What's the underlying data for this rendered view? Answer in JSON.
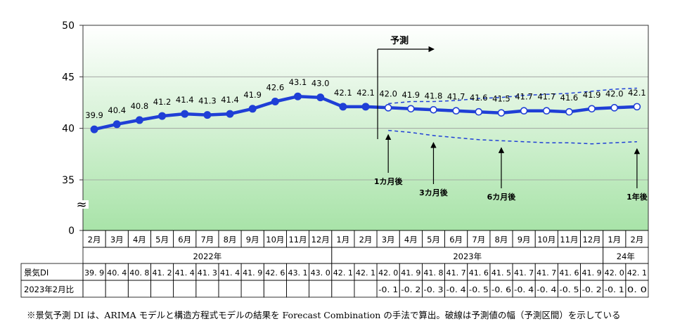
{
  "chart_data": {
    "type": "line",
    "y_ticks": [
      "50",
      "45",
      "40",
      "35",
      "0"
    ],
    "y_break_symbol": "≈",
    "months": [
      "2月",
      "3月",
      "4月",
      "5月",
      "6月",
      "7月",
      "8月",
      "9月",
      "10月",
      "11月",
      "12月",
      "1月",
      "2月",
      "3月",
      "4月",
      "5月",
      "6月",
      "7月",
      "8月",
      "9月",
      "10月",
      "11月",
      "12月",
      "1月",
      "2月"
    ],
    "year_groups": [
      {
        "label": "2022年",
        "start": 0,
        "end": 10
      },
      {
        "label": "2023年",
        "start": 11,
        "end": 22
      },
      {
        "label": "24年",
        "start": 23,
        "end": 24
      }
    ],
    "values": [
      39.9,
      40.4,
      40.8,
      41.2,
      41.4,
      41.3,
      41.4,
      41.9,
      42.6,
      43.1,
      43.0,
      42.1,
      42.1,
      42.0,
      41.9,
      41.8,
      41.7,
      41.6,
      41.5,
      41.7,
      41.7,
      41.6,
      41.9,
      42.0,
      42.1
    ],
    "value_labels": [
      "39.9",
      "40.4",
      "40.8",
      "41.2",
      "41.4",
      "41.3",
      "41.4",
      "41.9",
      "42.6",
      "43.1",
      "43.0",
      "42.1",
      "42.1",
      "42.0",
      "41.9",
      "41.8",
      "41.7",
      "41.6",
      "41.5",
      "41.7",
      "41.7",
      "41.6",
      "41.9",
      "42.0",
      "42.1"
    ],
    "forecast_start_index": 13,
    "upper_band": [
      42.4,
      42.6,
      42.6,
      42.7,
      42.9,
      43.0,
      43.2,
      43.3,
      43.4,
      43.6,
      43.8,
      43.9
    ],
    "lower_band": [
      39.8,
      39.6,
      39.3,
      39.1,
      38.9,
      38.8,
      38.7,
      38.6,
      38.6,
      38.5,
      38.6,
      38.7
    ],
    "forecast_label": "予測",
    "horizon_markers": [
      {
        "index": 13,
        "label": "1カ月後"
      },
      {
        "index": 15,
        "label": "3カ月後"
      },
      {
        "index": 18,
        "label": "6カ月後"
      },
      {
        "index": 24,
        "label": "1年後"
      }
    ],
    "table": {
      "row1_label": "景気DI",
      "row1_values": [
        "39. 9",
        "40. 4",
        "40. 8",
        "41. 2",
        "41. 4",
        "41. 3",
        "41. 4",
        "41. 9",
        "42. 6",
        "43. 1",
        "43. 0",
        "42. 1",
        "42. 1",
        "42. 0",
        "41. 9",
        "41. 8",
        "41. 7",
        "41. 6",
        "41. 5",
        "41. 7",
        "41. 7",
        "41. 6",
        "41. 9",
        "42. 0",
        "42. 1"
      ],
      "row2_label": "2023年2月比",
      "row2_values": [
        "",
        "",
        "",
        "",
        "",
        "",
        "",
        "",
        "",
        "",
        "",
        "",
        "",
        "-0. 1",
        "-0. 2",
        "-0. 3",
        "-0. 4",
        "-0. 5",
        "-0. 6",
        "-0. 4",
        "-0. 4",
        "-0. 5",
        "-0. 2",
        "-0. 1",
        "0. 0"
      ]
    },
    "colors": {
      "line": "#1f3fd6",
      "grid": "#9a9a9a",
      "band": "#1f3fd6",
      "fill_top": "#ffffff",
      "fill_bottom": "#a8e3a8"
    }
  },
  "footnote": "※景気予測 DI は、ARIMA モデルと構造方程式モデルの結果を Forecast Combination の手法で算出。破線は予測値の幅（予測区間）を示している"
}
